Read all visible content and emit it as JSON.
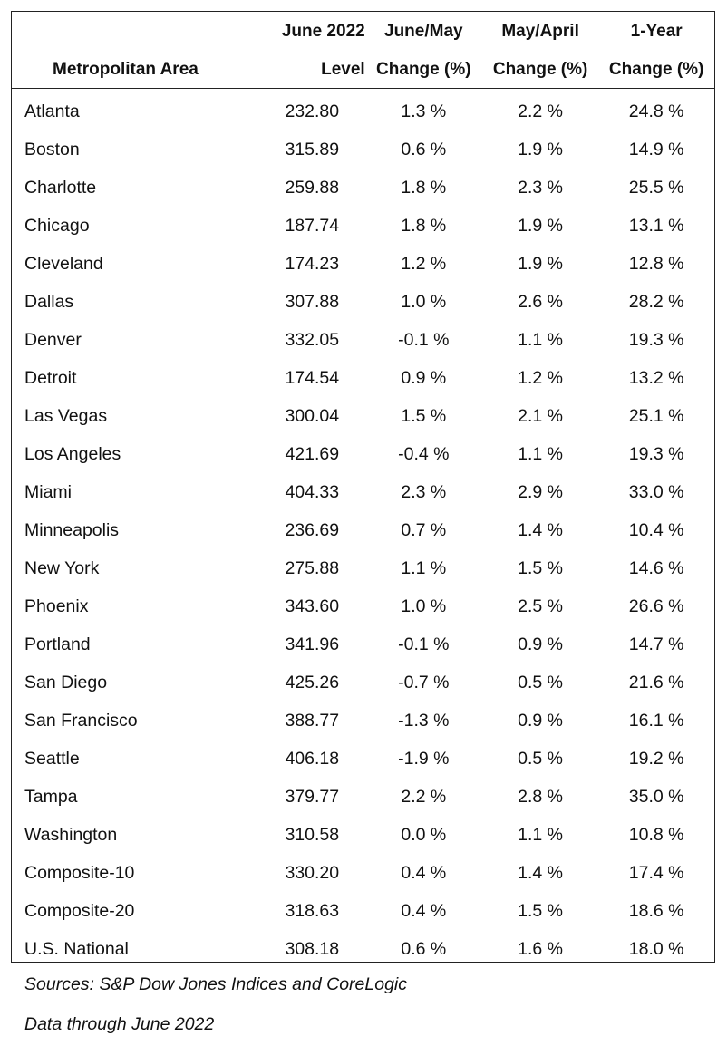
{
  "table": {
    "header_top": [
      "",
      "June 2022",
      "June/May",
      "May/April",
      "1-Year"
    ],
    "header_bottom": [
      "Metropolitan Area",
      "Level",
      "Change (%)",
      "Change (%)",
      "Change (%)"
    ],
    "rows": [
      [
        "Atlanta",
        "232.80",
        "1.3 %",
        "2.2 %",
        "24.8 %"
      ],
      [
        "Boston",
        "315.89",
        "0.6 %",
        "1.9 %",
        "14.9 %"
      ],
      [
        "Charlotte",
        "259.88",
        "1.8 %",
        "2.3 %",
        "25.5 %"
      ],
      [
        "Chicago",
        "187.74",
        "1.8 %",
        "1.9 %",
        "13.1 %"
      ],
      [
        "Cleveland",
        "174.23",
        "1.2 %",
        "1.9 %",
        "12.8 %"
      ],
      [
        "Dallas",
        "307.88",
        "1.0 %",
        "2.6 %",
        "28.2 %"
      ],
      [
        "Denver",
        "332.05",
        "-0.1 %",
        "1.1 %",
        "19.3 %"
      ],
      [
        "Detroit",
        "174.54",
        "0.9 %",
        "1.2 %",
        "13.2 %"
      ],
      [
        "Las Vegas",
        "300.04",
        "1.5 %",
        "2.1 %",
        "25.1 %"
      ],
      [
        "Los Angeles",
        "421.69",
        "-0.4 %",
        "1.1 %",
        "19.3 %"
      ],
      [
        "Miami",
        "404.33",
        "2.3 %",
        "2.9 %",
        "33.0 %"
      ],
      [
        "Minneapolis",
        "236.69",
        "0.7 %",
        "1.4 %",
        "10.4 %"
      ],
      [
        "New York",
        "275.88",
        "1.1 %",
        "1.5 %",
        "14.6 %"
      ],
      [
        "Phoenix",
        "343.60",
        "1.0 %",
        "2.5 %",
        "26.6 %"
      ],
      [
        "Portland",
        "341.96",
        "-0.1 %",
        "0.9 %",
        "14.7 %"
      ],
      [
        "San Diego",
        "425.26",
        "-0.7 %",
        "0.5 %",
        "21.6 %"
      ],
      [
        "San Francisco",
        "388.77",
        "-1.3 %",
        "0.9 %",
        "16.1 %"
      ],
      [
        "Seattle",
        "406.18",
        "-1.9 %",
        "0.5 %",
        "19.2 %"
      ],
      [
        "Tampa",
        "379.77",
        "2.2 %",
        "2.8 %",
        "35.0 %"
      ],
      [
        "Washington",
        "310.58",
        "0.0 %",
        "1.1 %",
        "10.8 %"
      ],
      [
        "Composite-10",
        "330.20",
        "0.4 %",
        "1.4 %",
        "17.4 %"
      ],
      [
        "Composite-20",
        "318.63",
        "0.4 %",
        "1.5 %",
        "18.6 %"
      ],
      [
        "U.S. National",
        "308.18",
        "0.6 %",
        "1.6 %",
        "18.0 %"
      ]
    ]
  },
  "notes": {
    "sources": "Sources: S&P Dow Jones Indices and CoreLogic",
    "through": "Data through June 2022"
  }
}
